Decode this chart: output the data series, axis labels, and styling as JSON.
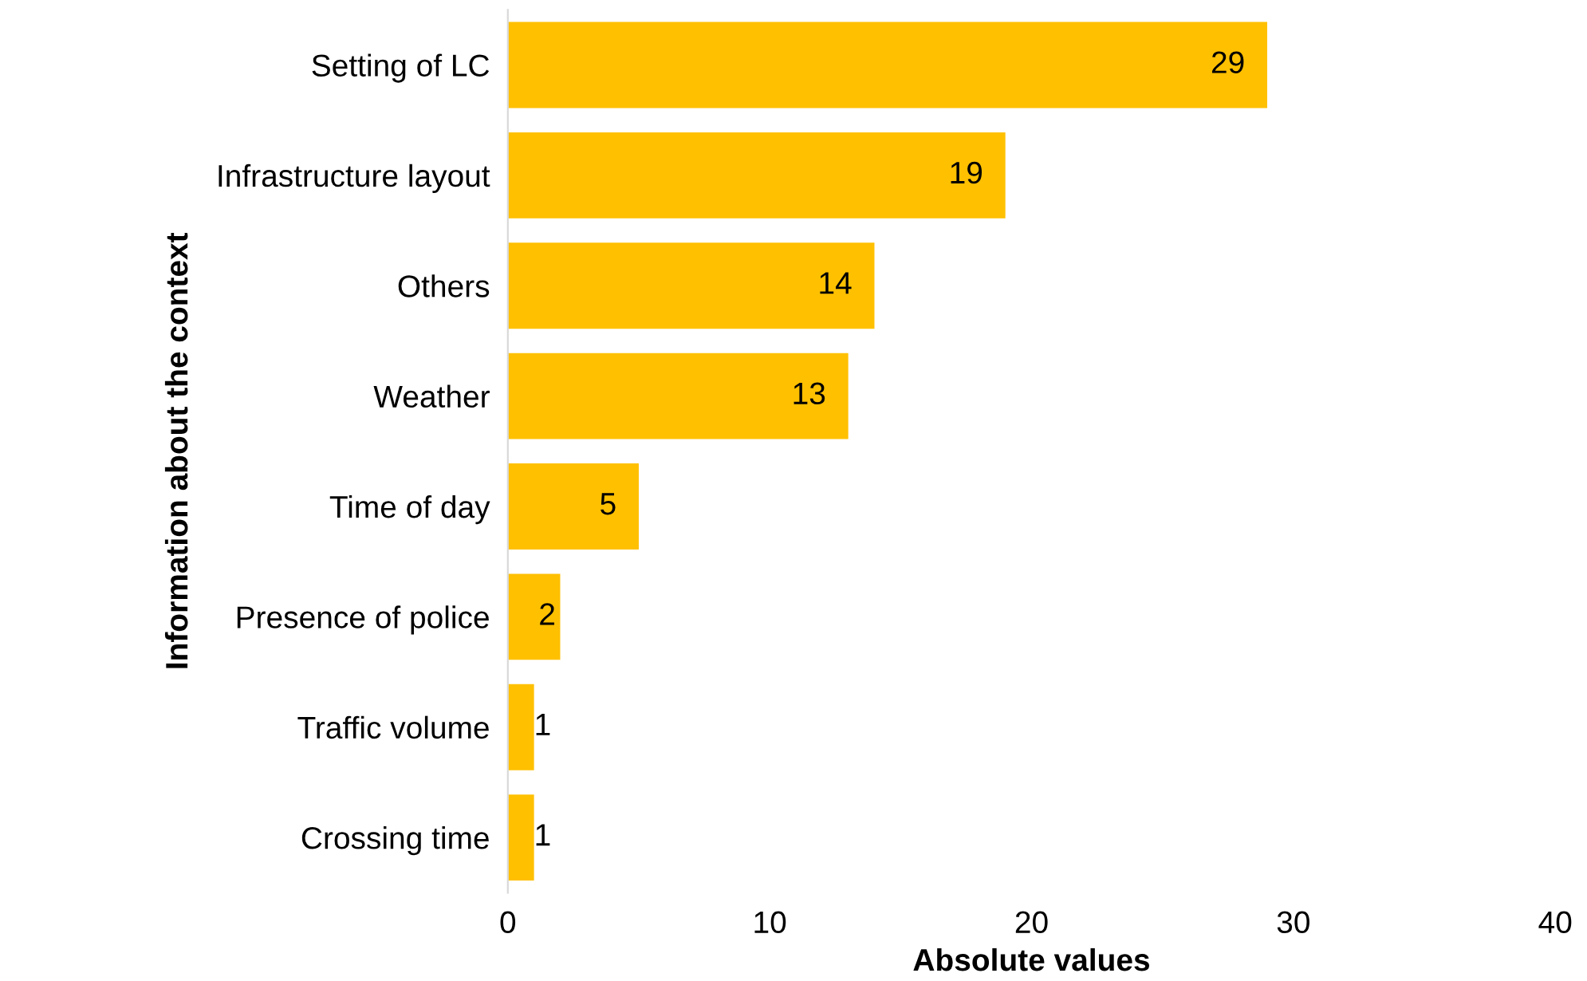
{
  "chart_data": {
    "type": "bar",
    "orientation": "horizontal",
    "xlabel": "Absolute values",
    "ylabel": "Information about the context",
    "categories": [
      "Setting of LC",
      "Infrastructure layout",
      "Others",
      "Weather",
      "Time of day",
      "Presence of police",
      "Traffic volume",
      "Crossing time"
    ],
    "values": [
      29,
      19,
      14,
      13,
      5,
      2,
      1,
      1
    ],
    "color": "#ffc000",
    "xlim": [
      0,
      40
    ],
    "xticks": [
      0,
      10,
      20,
      30,
      40
    ],
    "grid": false,
    "data_labels": true
  }
}
